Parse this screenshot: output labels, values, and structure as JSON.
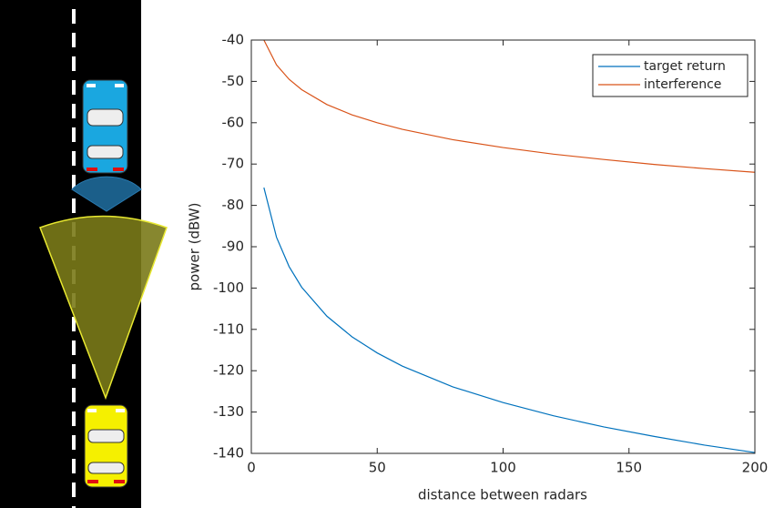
{
  "chart_data": {
    "type": "line",
    "xlabel": "distance between radars",
    "ylabel": "power (dBW)",
    "x": [
      5,
      10,
      15,
      20,
      30,
      40,
      50,
      60,
      80,
      100,
      120,
      140,
      160,
      180,
      200
    ],
    "series": [
      {
        "name": "target return",
        "color": "#0072bd",
        "values": [
          -75.7,
          -87.7,
          -94.8,
          -99.8,
          -106.8,
          -111.8,
          -115.7,
          -118.9,
          -123.9,
          -127.7,
          -130.9,
          -133.6,
          -135.9,
          -138.0,
          -139.8
        ]
      },
      {
        "name": "interference",
        "color": "#d95319",
        "values": [
          -40.0,
          -46.0,
          -49.5,
          -52.0,
          -55.6,
          -58.1,
          -60.0,
          -61.6,
          -64.1,
          -66.0,
          -67.6,
          -68.9,
          -70.1,
          -71.1,
          -72.0
        ]
      }
    ],
    "xlim": [
      0,
      200
    ],
    "xticks": [
      0,
      50,
      100,
      150,
      200
    ],
    "ylim": [
      -140,
      -40
    ],
    "yticks": [
      -140,
      -130,
      -120,
      -110,
      -100,
      -90,
      -80,
      -70,
      -60,
      -50,
      -40
    ],
    "legend": "top-right"
  }
}
